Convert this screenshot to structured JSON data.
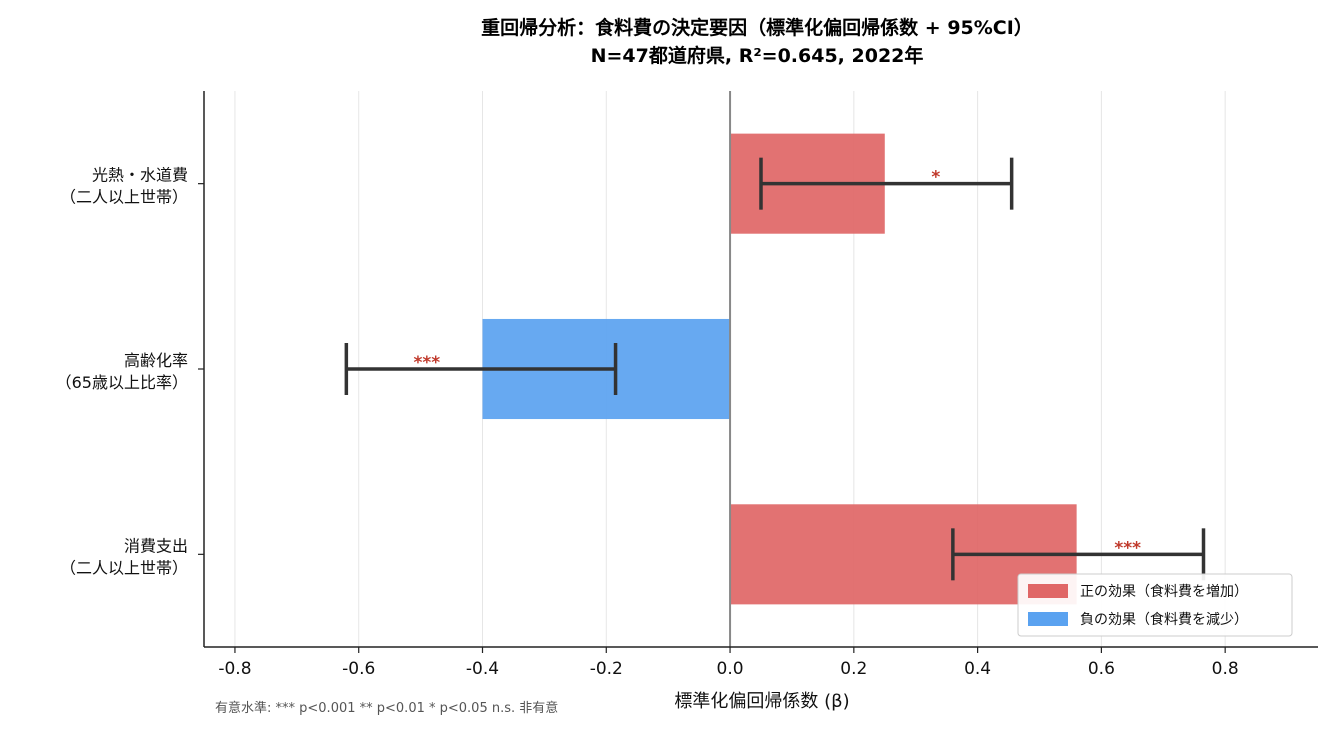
{
  "chart_data": {
    "type": "bar",
    "orientation": "horizontal",
    "title_line1": "重回帰分析：食料費の決定要因（標準化偏回帰係数 + 95%CI）",
    "title_line2": "N=47都道府県, R²=0.645, 2022年",
    "xlabel": "標準化偏回帰係数 (β)",
    "xlim": [
      -0.85,
      0.95
    ],
    "xticks": [
      -0.8,
      -0.6,
      -0.4,
      -0.2,
      0.0,
      0.2,
      0.4,
      0.6,
      0.8
    ],
    "xtick_labels": [
      "-0.8",
      "-0.6",
      "-0.4",
      "-0.2",
      "0.0",
      "0.2",
      "0.4",
      "0.6",
      "0.8"
    ],
    "grid": "vertical",
    "categories": [
      {
        "line1": "光熱・水道費",
        "line2": "（二人以上世帯）"
      },
      {
        "line1": "高齢化率",
        "line2": "（65歳以上比率）"
      },
      {
        "line1": "消費支出",
        "line2": "（二人以上世帯）"
      }
    ],
    "values": [
      0.25,
      -0.4,
      0.56
    ],
    "ci_low": [
      0.05,
      -0.62,
      0.36
    ],
    "ci_high": [
      0.455,
      -0.185,
      0.765
    ],
    "significance": [
      "*",
      "***",
      "***"
    ],
    "colors": {
      "positive": "#e06666",
      "negative": "#5aa2f0",
      "errorbar": "#333333",
      "significance": "#c0392b",
      "zero_line": "#888888",
      "grid": "#e6e6e6"
    },
    "legend": {
      "placement": "bottom-right",
      "entries": [
        {
          "label": "正の効果（食料費を増加）",
          "color": "#e06666"
        },
        {
          "label": "負の効果（食料費を減少）",
          "color": "#5aa2f0"
        }
      ]
    },
    "footnote": "有意水準: *** p<0.001   ** p<0.01   * p<0.05   n.s. 非有意"
  }
}
